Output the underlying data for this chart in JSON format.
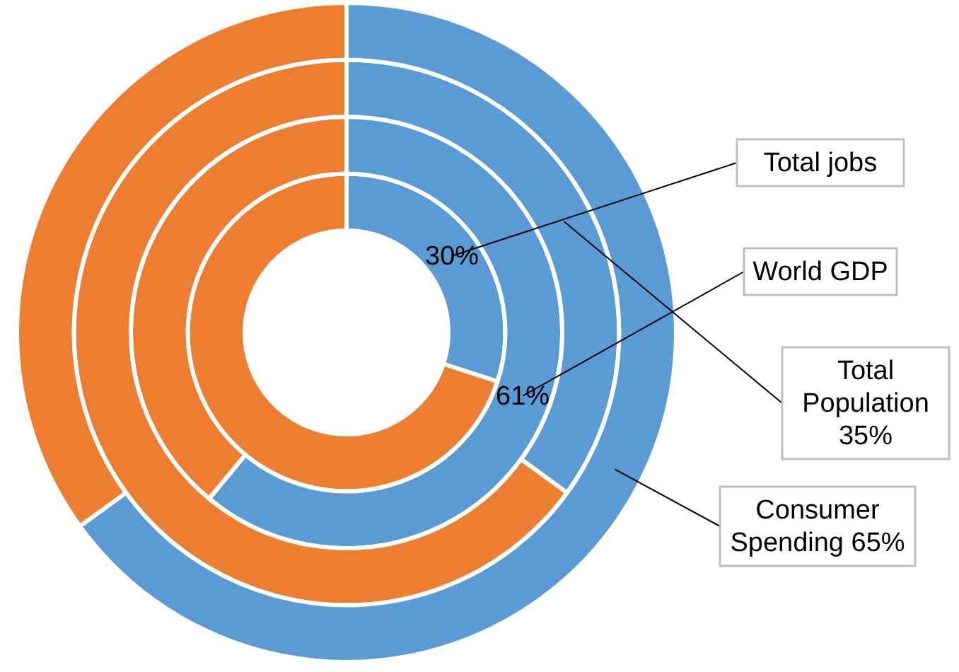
{
  "chart_data": {
    "type": "donut",
    "categories": [
      null,
      null
    ],
    "colors": [
      "#5b9bd5",
      "#ed7d31"
    ],
    "series": [
      {
        "name": "Total jobs",
        "values": [
          30,
          70
        ],
        "value_labels": [
          "30%",
          null
        ]
      },
      {
        "name": "World GDP",
        "values": [
          61,
          39
        ],
        "value_labels": [
          "61%",
          null
        ]
      },
      {
        "name": "Total Population",
        "values": [
          35,
          65
        ],
        "value_labels": [
          "35%",
          null
        ]
      },
      {
        "name": "Consumer Spending",
        "values": [
          65,
          35
        ],
        "value_labels": [
          "65%",
          null
        ]
      }
    ]
  }
}
